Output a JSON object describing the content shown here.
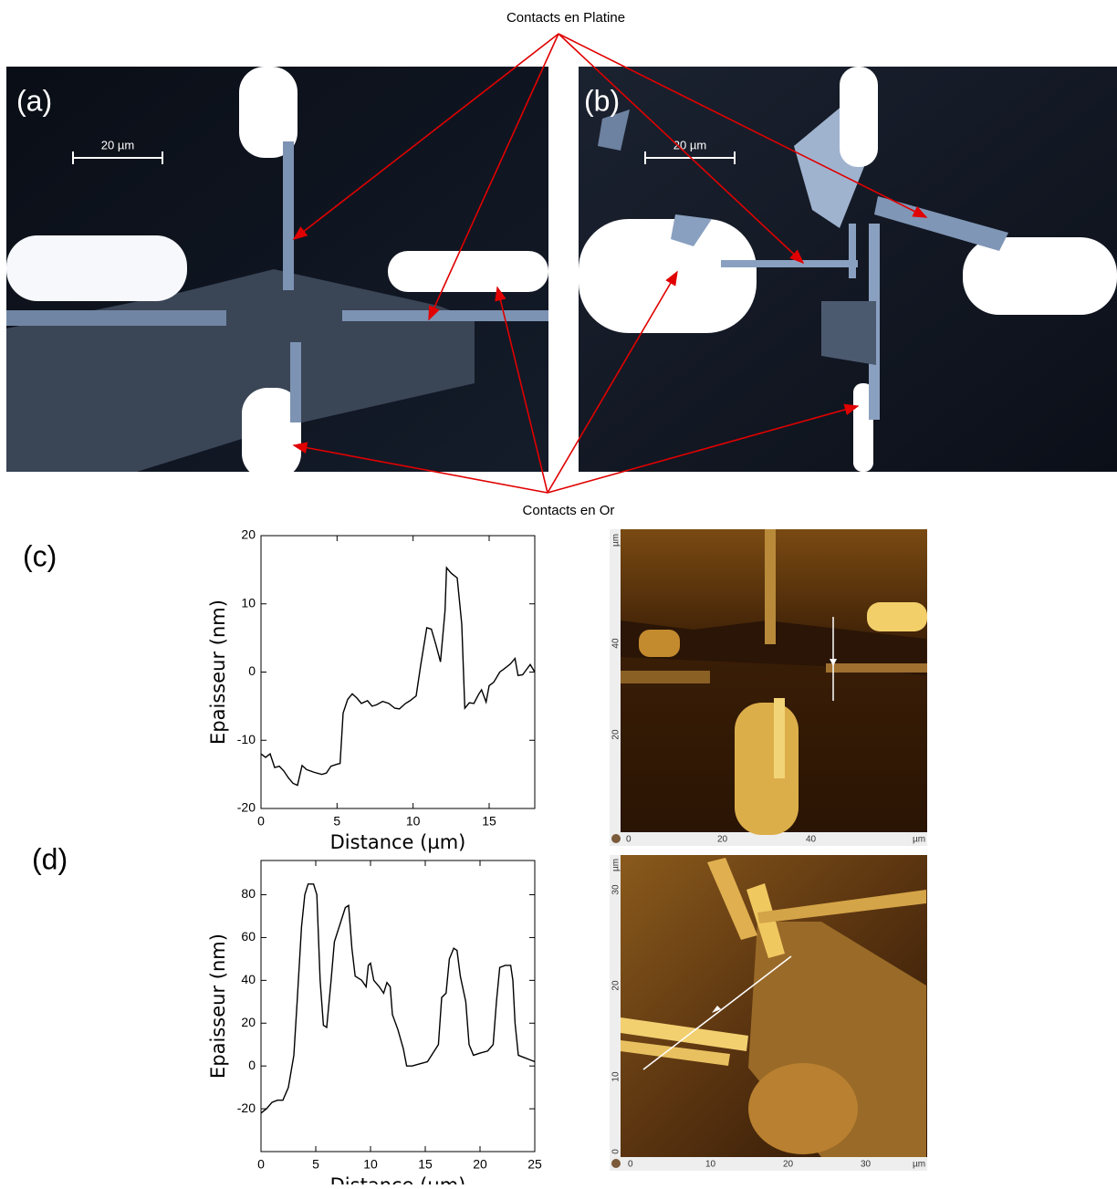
{
  "callouts": {
    "platinum": "Contacts en Platine",
    "gold": "Contacts en Or"
  },
  "panels": {
    "a": "(a)",
    "b": "(b)",
    "c": "(c)",
    "d": "(d)"
  },
  "scale_bars": [
    "20 µm",
    "20 µm"
  ],
  "afm": [
    {
      "y_unit": "µm",
      "y_labels": [
        "40",
        "20"
      ],
      "x_labels": [
        "0",
        "20",
        "40"
      ],
      "x_unit": "µm"
    },
    {
      "y_unit": "µm",
      "y_labels": [
        "30",
        "20",
        "10",
        "0"
      ],
      "x_labels": [
        "0",
        "10",
        "20",
        "30"
      ],
      "x_unit": "µm"
    }
  ],
  "chart_data": [
    {
      "type": "line",
      "xlabel": "Distance (µm)",
      "ylabel": "Epaisseur (nm)",
      "xlim": [
        0,
        18
      ],
      "xticks": [
        0,
        5,
        10,
        15
      ],
      "ylim": [
        -20,
        20
      ],
      "yticks": [
        -20,
        -10,
        0,
        10,
        20
      ],
      "x": [
        0,
        0.3,
        0.6,
        0.9,
        1.2,
        1.5,
        1.8,
        2.1,
        2.4,
        2.7,
        3,
        3.5,
        4,
        4.3,
        4.6,
        5,
        5.2,
        5.4,
        5.7,
        6,
        6.3,
        6.6,
        7,
        7.3,
        7.6,
        8,
        8.4,
        8.8,
        9.1,
        9.5,
        9.8,
        10.2,
        10.5,
        10.9,
        11.2,
        11.5,
        11.8,
        12.1,
        12.2,
        12.5,
        12.9,
        13.2,
        13.4,
        13.7,
        14,
        14.3,
        14.5,
        14.8,
        15,
        15.3,
        15.7,
        16,
        16.4,
        16.7,
        16.9,
        17.2,
        17.5,
        17.7,
        18
      ],
      "series": [
        {
          "color": "#000000",
          "values": [
            -12,
            -12.5,
            -12,
            -14,
            -13.8,
            -14.5,
            -15.5,
            -16.3,
            -16.6,
            -13.7,
            -14.3,
            -14.7,
            -15,
            -14.8,
            -13.8,
            -13.5,
            -13.4,
            -6,
            -4,
            -3.2,
            -3.8,
            -4.6,
            -4.2,
            -5,
            -4.8,
            -4.3,
            -4.6,
            -5.3,
            -5.4,
            -4.6,
            -4.2,
            -3.5,
            1,
            6.5,
            6.3,
            4,
            1.5,
            9,
            15.3,
            14.5,
            13.8,
            7,
            -5.3,
            -4.5,
            -4.6,
            -3.3,
            -2.6,
            -4.4,
            -2,
            -1.5,
            0,
            0.5,
            1.2,
            2,
            -0.5,
            -0.4,
            0.5,
            1.1,
            0
          ]
        }
      ]
    },
    {
      "type": "line",
      "xlabel": "Distance (µm)",
      "ylabel": "Epaisseur (nm)",
      "xlim": [
        0,
        25
      ],
      "xticks": [
        0,
        5,
        10,
        15,
        20,
        25
      ],
      "ylim": [
        -40,
        96
      ],
      "yticks": [
        -20,
        0,
        20,
        40,
        60,
        80
      ],
      "x": [
        0,
        0.5,
        1,
        1.5,
        2,
        2.5,
        3,
        3.3,
        3.7,
        4,
        4.3,
        4.8,
        5.1,
        5.4,
        5.7,
        6,
        6.4,
        6.7,
        7.2,
        7.7,
        8,
        8.3,
        8.6,
        9.2,
        9.6,
        9.8,
        10,
        10.3,
        10.8,
        11.2,
        11.5,
        11.8,
        12,
        12.5,
        13,
        13.3,
        13.8,
        14.5,
        15.2,
        15.7,
        16.2,
        16.5,
        16.9,
        17.2,
        17.6,
        17.9,
        18.2,
        18.7,
        19,
        19.4,
        20,
        20.7,
        21.2,
        21.5,
        21.8,
        22.3,
        22.8,
        23,
        23.2,
        23.5,
        24,
        24.5,
        25
      ],
      "series": [
        {
          "color": "#000000",
          "values": [
            -22,
            -20,
            -17,
            -16,
            -16,
            -10,
            5,
            30,
            65,
            80,
            85,
            85,
            80,
            40,
            19,
            18,
            40,
            58,
            66,
            74,
            75,
            55,
            42,
            40,
            37,
            47,
            48,
            40,
            37,
            34,
            39,
            37,
            24,
            17,
            8,
            0,
            0,
            1,
            2,
            6,
            10,
            32,
            34,
            50,
            55,
            54,
            42,
            30,
            10,
            5,
            6,
            7,
            10,
            30,
            46,
            47,
            47,
            40,
            20,
            5,
            4,
            3,
            2
          ]
        }
      ]
    }
  ]
}
